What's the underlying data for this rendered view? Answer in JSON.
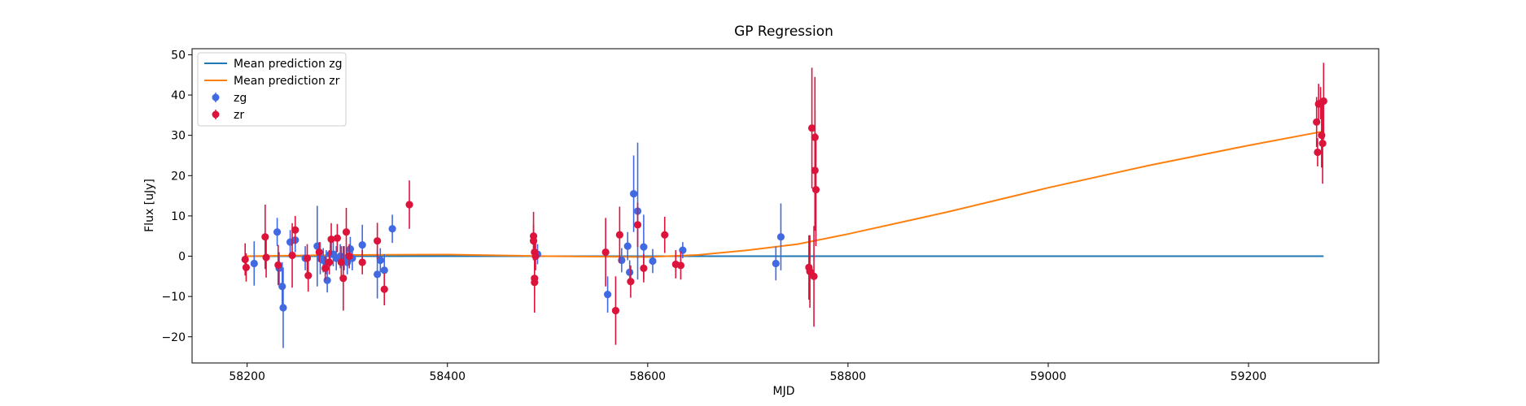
{
  "chart_data": {
    "type": "scatter",
    "title": "GP Regression",
    "xlabel": "MJD",
    "ylabel": "Flux [uJy]",
    "xlim": [
      58145,
      59330
    ],
    "ylim": [
      -26.5,
      51.5
    ],
    "xticks": [
      58200,
      58400,
      58600,
      58800,
      59000,
      59200
    ],
    "yticks": [
      -20,
      -10,
      0,
      10,
      20,
      30,
      40,
      50
    ],
    "grid": false,
    "legend_position": "upper-left",
    "colors": {
      "zg": "#4169E1",
      "zr": "#DC143C",
      "mean_zg": "#1f77b4",
      "mean_zr": "#ff7f0e"
    },
    "lines": [
      {
        "name": "Mean prediction zg",
        "color": "#1f77b4",
        "x": [
          58198,
          59275
        ],
        "y": [
          0,
          0
        ]
      },
      {
        "name": "Mean prediction zr",
        "color": "#ff7f0e",
        "x": [
          58198,
          58300,
          58400,
          58500,
          58600,
          58650,
          58700,
          58750,
          58800,
          58900,
          59000,
          59100,
          59200,
          59275
        ],
        "y": [
          0.0,
          0.3,
          0.4,
          0.0,
          -0.2,
          0.3,
          1.5,
          3.0,
          5.5,
          11.0,
          17.0,
          22.5,
          27.5,
          31.0
        ]
      }
    ],
    "series": [
      {
        "name": "zg",
        "color": "#4169E1",
        "points": [
          [
            58207,
            -1.8,
            5.5
          ],
          [
            58230,
            6.0,
            3.5
          ],
          [
            58232,
            -3.0,
            4
          ],
          [
            58235,
            -7.5,
            6
          ],
          [
            58236,
            -12.8,
            10
          ],
          [
            58243,
            3.5,
            3
          ],
          [
            58248,
            4.0,
            3
          ],
          [
            58258,
            -0.5,
            3
          ],
          [
            58270,
            2.5,
            10
          ],
          [
            58273,
            -0.5,
            4
          ],
          [
            58276,
            -1.0,
            3
          ],
          [
            58279,
            -1.5,
            3
          ],
          [
            58280,
            -6.0,
            3
          ],
          [
            58283,
            0.5,
            3
          ],
          [
            58286,
            0.5,
            3
          ],
          [
            58289,
            -0.5,
            3
          ],
          [
            58293,
            0.0,
            3
          ],
          [
            58297,
            -0.5,
            3
          ],
          [
            58300,
            -1.5,
            3
          ],
          [
            58303,
            1.8,
            3
          ],
          [
            58305,
            -0.5,
            3
          ],
          [
            58315,
            2.8,
            5
          ],
          [
            58330,
            -4.5,
            6
          ],
          [
            58333,
            -1.0,
            3
          ],
          [
            58337,
            -3.5,
            4
          ],
          [
            58345,
            6.8,
            3.5
          ],
          [
            58490,
            0.5,
            2.5
          ],
          [
            58560,
            -9.5,
            4.5
          ],
          [
            58574,
            -1.0,
            3
          ],
          [
            58580,
            2.5,
            3.5
          ],
          [
            58582,
            -4.0,
            3
          ],
          [
            58586,
            15.5,
            9.5
          ],
          [
            58590,
            11.2,
            17
          ],
          [
            58596,
            2.3,
            8
          ],
          [
            58605,
            -1.2,
            3
          ],
          [
            58635,
            1.5,
            2
          ],
          [
            58728,
            -1.8,
            4.2
          ],
          [
            58733,
            4.8,
            8.3
          ]
        ]
      },
      {
        "name": "zr",
        "color": "#DC143C",
        "points": [
          [
            58198,
            -0.8,
            4
          ],
          [
            58199,
            -2.8,
            3.5
          ],
          [
            58218,
            4.8,
            8
          ],
          [
            58219,
            -0.3,
            5
          ],
          [
            58231,
            -2.2,
            5
          ],
          [
            58245,
            0.2,
            8
          ],
          [
            58248,
            6.5,
            3.5
          ],
          [
            58260,
            -0.5,
            3.5
          ],
          [
            58261,
            -4.8,
            4
          ],
          [
            58272,
            1.0,
            2.5
          ],
          [
            58278,
            -3.0,
            3
          ],
          [
            58282,
            -1.5,
            3
          ],
          [
            58284,
            4.2,
            4
          ],
          [
            58290,
            4.5,
            3.5
          ],
          [
            58294,
            -1.5,
            4
          ],
          [
            58296,
            -5.5,
            8
          ],
          [
            58299,
            6.0,
            6
          ],
          [
            58302,
            0.0,
            3
          ],
          [
            58315,
            -1.5,
            3
          ],
          [
            58330,
            3.8,
            4.5
          ],
          [
            58337,
            -8.2,
            4
          ],
          [
            58362,
            12.8,
            6
          ],
          [
            58486,
            5.0,
            6
          ],
          [
            58486,
            3.8,
            4
          ],
          [
            58487,
            -5.5,
            4
          ],
          [
            58487,
            -6.5,
            7.5
          ],
          [
            58487,
            1.0,
            4
          ],
          [
            58488,
            0.0,
            3.5
          ],
          [
            58558,
            1.0,
            8.5
          ],
          [
            58568,
            -13.5,
            8.5
          ],
          [
            58572,
            5.3,
            7
          ],
          [
            58583,
            -6.3,
            4
          ],
          [
            58590,
            7.8,
            5.5
          ],
          [
            58596,
            -3.0,
            3.5
          ],
          [
            58617,
            5.3,
            4.5
          ],
          [
            58628,
            -2.0,
            3.5
          ],
          [
            58633,
            -2.3,
            3.5
          ],
          [
            58761,
            -2.8,
            8
          ],
          [
            58762,
            -3.8,
            9
          ],
          [
            58764,
            31.8,
            15
          ],
          [
            58766,
            -5.0,
            12.5
          ],
          [
            58767,
            29.5,
            15
          ],
          [
            58767,
            21.3,
            15
          ],
          [
            58768,
            16.5,
            14
          ],
          [
            59268,
            33.3,
            6.2
          ],
          [
            59269,
            25.8,
            3.5
          ],
          [
            59270,
            37.8,
            5
          ],
          [
            59272,
            38.0,
            4
          ],
          [
            59273,
            30.0,
            8
          ],
          [
            59274,
            28.0,
            10
          ],
          [
            59275,
            38.5,
            9.5
          ]
        ]
      }
    ]
  }
}
